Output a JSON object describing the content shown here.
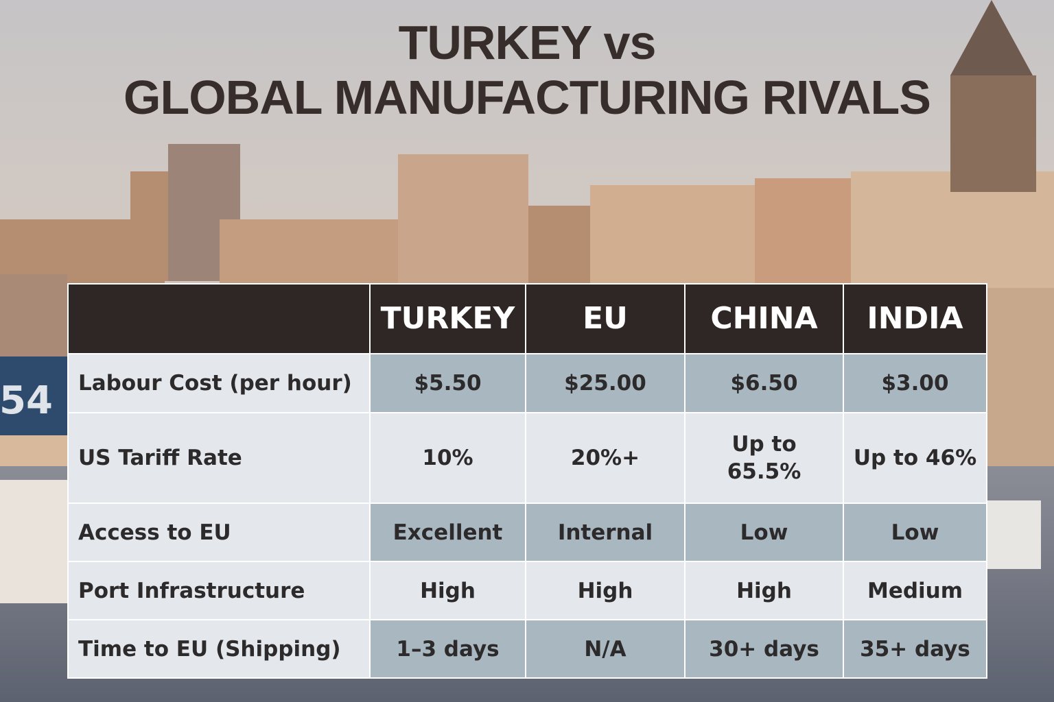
{
  "header": {
    "title_lines": [
      "TURKEY vs",
      "GLOBAL MANUFACTURING RIVALS"
    ]
  },
  "background": {
    "sign_label": "54"
  },
  "table": {
    "columns": [
      "TURKEY",
      "EU",
      "CHINA",
      "INDIA"
    ],
    "rows": [
      [
        "Labour Cost (per hour)",
        "$5.50",
        "$25.00",
        "$6.50",
        "$3.00"
      ],
      [
        "US Tariff Rate",
        "10%",
        "20%+",
        "Up to 65.5%",
        "Up to 46%"
      ],
      [
        "Access to EU",
        "Excellent",
        "Internal",
        "Low",
        "Low"
      ],
      [
        "Port Infrastructure",
        "High",
        "High",
        "High",
        "Medium"
      ],
      [
        "Time to EU (Shipping)",
        "1–3 days",
        "N/A",
        "30+ days",
        "35+ days"
      ]
    ]
  }
}
